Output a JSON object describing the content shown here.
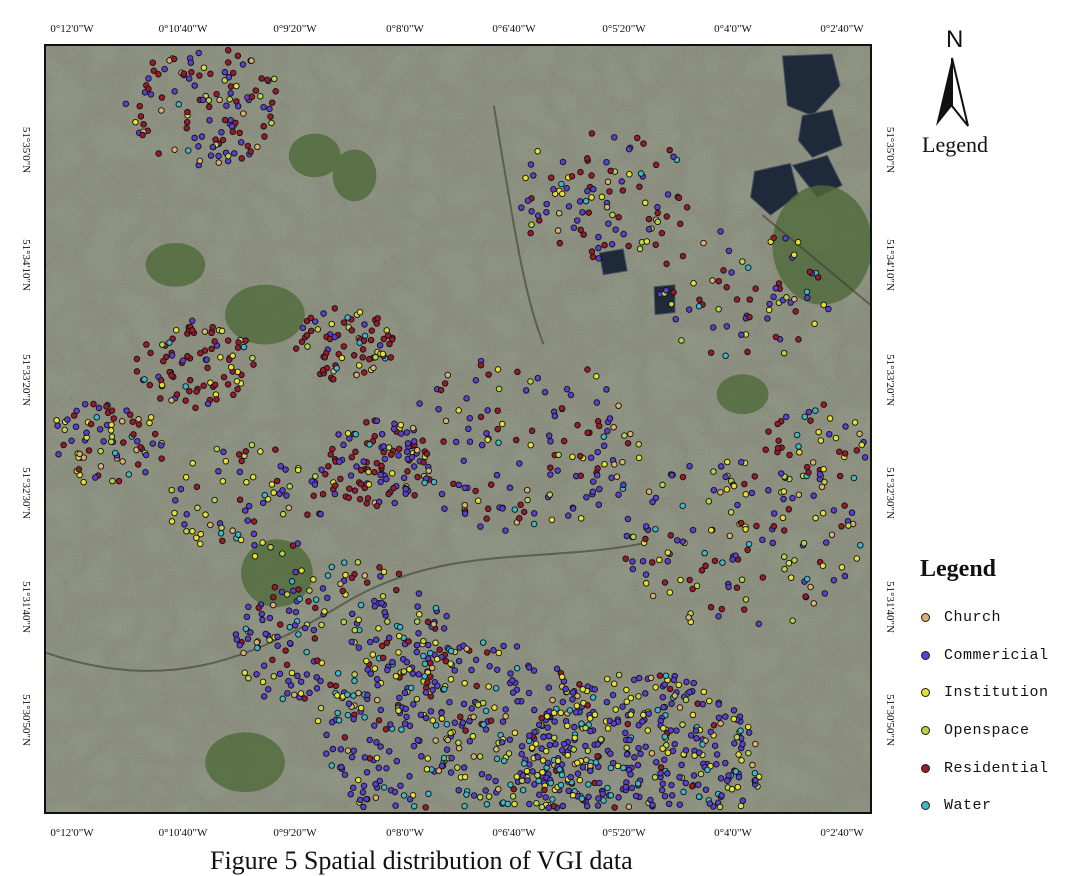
{
  "map": {
    "x_ticks": [
      "0°12'0\"W",
      "0°10'40\"W",
      "0°9'20\"W",
      "0°8'0\"W",
      "0°6'40\"W",
      "0°5'20\"W",
      "0°4'0\"W",
      "0°2'40\"W"
    ],
    "y_ticks": [
      "51°35'0\"N",
      "51°34'10\"N",
      "51°33'20\"N",
      "51°32'30\"N",
      "51°31'40\"N",
      "51°30'50\"N"
    ],
    "north_letter": "N",
    "north_label": "Legend",
    "caption": "Figure 5 Spatial distribution of VGI data",
    "colors": {
      "imagery_base": "#6f7362",
      "frame": "#111111"
    }
  },
  "legend": {
    "title": "Legend",
    "items": [
      {
        "label": "Church",
        "color": "#d8b070"
      },
      {
        "label": "Commericial",
        "color": "#5a3fd0"
      },
      {
        "label": "Institution",
        "color": "#e4e032"
      },
      {
        "label": "Openspace",
        "color": "#b8d24a"
      },
      {
        "label": "Residential",
        "color": "#9a1a2a"
      },
      {
        "label": "Water",
        "color": "#3fb7c8"
      }
    ]
  }
}
